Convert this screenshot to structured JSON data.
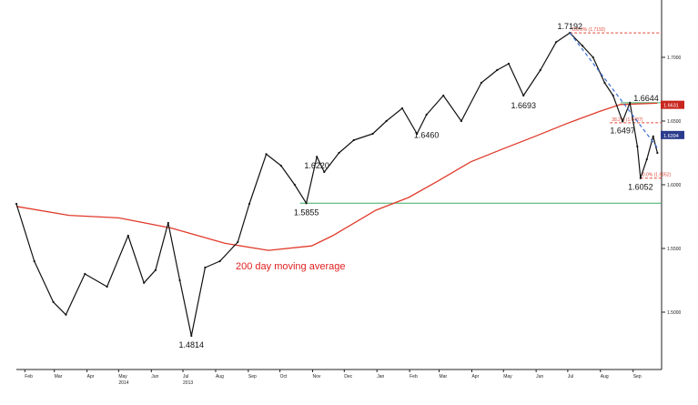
{
  "chart_data": {
    "type": "line",
    "title": "",
    "xlabel": "",
    "ylabel": "",
    "ylim": [
      1.455,
      1.745
    ],
    "x_tick_labels": [
      "Feb",
      "Mar",
      "Apr",
      "May",
      "Jun",
      "Jul",
      "Aug",
      "Sep",
      "Oct",
      "Nov",
      "Dec",
      "Jan",
      "Feb",
      "Mar",
      "Apr",
      "May",
      "Jun",
      "Jul",
      "Aug",
      "Sep"
    ],
    "year_labels": [
      {
        "label": "2013",
        "under": "Jul"
      },
      {
        "label": "2014",
        "under": "May"
      }
    ],
    "y_tick_labels": [
      "1.5000",
      "1.5500",
      "1.6000",
      "1.6500",
      "1.7000"
    ],
    "series": [
      {
        "name": "",
        "kind": "price",
        "x": [
          "2013-01-24",
          "2013-02-10",
          "2013-02-28",
          "2013-03-12",
          "2013-03-30",
          "2013-04-20",
          "2013-05-10",
          "2013-05-25",
          "2013-06-05",
          "2013-06-17",
          "2013-06-28",
          "2013-07-09",
          "2013-07-22",
          "2013-08-05",
          "2013-08-22",
          "2013-09-02",
          "2013-09-18",
          "2013-10-02",
          "2013-10-15",
          "2013-10-26",
          "2013-11-05",
          "2013-11-12",
          "2013-11-26",
          "2013-12-10",
          "2013-12-28",
          "2014-01-10",
          "2014-01-25",
          "2014-02-08",
          "2014-02-17",
          "2014-03-05",
          "2014-03-22",
          "2014-04-10",
          "2014-04-25",
          "2014-05-06",
          "2014-05-20",
          "2014-06-05",
          "2014-06-20",
          "2014-07-03",
          "2014-07-15",
          "2014-07-25",
          "2014-08-05",
          "2014-08-13",
          "2014-08-22",
          "2014-08-29",
          "2014-09-05",
          "2014-09-08",
          "2014-09-14",
          "2014-09-20",
          "2014-09-24"
        ],
        "values": [
          1.585,
          1.54,
          1.508,
          1.498,
          1.53,
          1.52,
          1.56,
          1.523,
          1.533,
          1.57,
          1.525,
          1.4814,
          1.535,
          1.54,
          1.555,
          1.585,
          1.624,
          1.615,
          1.6,
          1.5855,
          1.622,
          1.61,
          1.625,
          1.635,
          1.64,
          1.65,
          1.66,
          1.64,
          1.655,
          1.67,
          1.65,
          1.68,
          1.69,
          1.695,
          1.67,
          1.69,
          1.712,
          1.7192,
          1.709,
          1.7,
          1.68,
          1.67,
          1.6497,
          1.6644,
          1.63,
          1.6052,
          1.62,
          1.638,
          1.625
        ]
      },
      {
        "name": "200 day moving average",
        "kind": "moving_average",
        "x": [
          "2013-01-24",
          "2013-03-15",
          "2013-05-01",
          "2013-06-20",
          "2013-08-10",
          "2013-09-20",
          "2013-10-31",
          "2013-11-20",
          "2013-12-31",
          "2014-01-31",
          "2014-02-28",
          "2014-03-31",
          "2014-04-30",
          "2014-05-31",
          "2014-06-30",
          "2014-07-31",
          "2014-08-20",
          "2014-09-24"
        ],
        "values": [
          1.583,
          1.576,
          1.574,
          1.566,
          1.554,
          1.5485,
          1.552,
          1.56,
          1.58,
          1.59,
          1.603,
          1.618,
          1.628,
          1.638,
          1.648,
          1.6575,
          1.663,
          1.664
        ]
      }
    ],
    "levels": [
      {
        "label": "1.5855",
        "value": 1.5855,
        "color": "#3fae64",
        "style": "solid",
        "from": "2013-10-20"
      },
      {
        "label": "",
        "value": 1.6644,
        "color": "#3fae64",
        "style": "solid",
        "from": "2014-08-20"
      },
      {
        "label": "100.0% (1.7192)",
        "value": 1.7192,
        "color": "#e04a3a",
        "style": "dashed",
        "from": "2014-07-03"
      },
      {
        "label": "38.2% (1.6487)",
        "value": 1.6487,
        "color": "#e04a3a",
        "style": "dashed",
        "from": "2014-08-10"
      },
      {
        "label": "0.0% (1.6052)",
        "value": 1.6052,
        "color": "#e04a3a",
        "style": "dashed",
        "from": "2014-09-08"
      }
    ],
    "trendline": {
      "from": {
        "x": "2014-07-03",
        "y": 1.7192
      },
      "to": {
        "x": "2014-09-25",
        "y": 1.628
      },
      "color": "#3b6cd8",
      "style": "dashed"
    },
    "annotations": [
      {
        "text": "1.4814",
        "x": "2013-07-09",
        "y": 1.4814,
        "pos": "below"
      },
      {
        "text": "1.5855",
        "x": "2013-10-26",
        "y": 1.5855,
        "pos": "below"
      },
      {
        "text": "1.6220",
        "x": "2013-11-05",
        "y": 1.622,
        "pos": "below"
      },
      {
        "text": "1.6460",
        "x": "2014-02-17",
        "y": 1.646,
        "pos": "below"
      },
      {
        "text": "1.6693",
        "x": "2014-05-20",
        "y": 1.6693,
        "pos": "below"
      },
      {
        "text": "1.7192",
        "x": "2014-07-03",
        "y": 1.7192,
        "pos": "above"
      },
      {
        "text": "1.6644",
        "x": "2014-08-29",
        "y": 1.6644,
        "pos": "right"
      },
      {
        "text": "1.6497",
        "x": "2014-08-22",
        "y": 1.6497,
        "pos": "below"
      },
      {
        "text": "1.6052",
        "x": "2014-09-08",
        "y": 1.6052,
        "pos": "below"
      }
    ],
    "ma_label": {
      "text": "200 day moving average",
      "color": "#e02020"
    },
    "value_tags": [
      {
        "text": "1.6631",
        "value": 1.6631,
        "color": "#c8261e"
      },
      {
        "text": "1.6394",
        "value": 1.6394,
        "color": "#2a3a8c"
      }
    ],
    "grid": false,
    "legend": "none"
  }
}
